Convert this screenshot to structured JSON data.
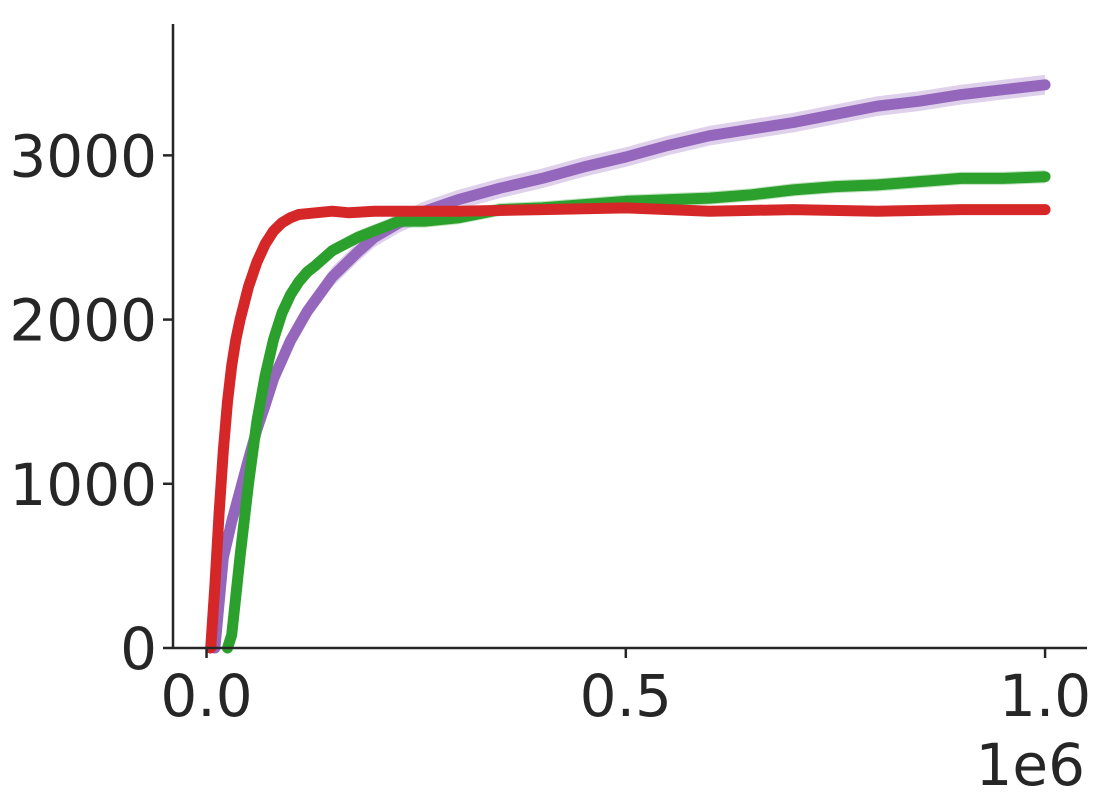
{
  "chart_data": {
    "type": "line",
    "title": "",
    "xlabel": "",
    "ylabel": "",
    "x_offset_label": "1e6",
    "xlim": [
      -0.04,
      1.05
    ],
    "ylim": [
      0,
      3800
    ],
    "xticks": [
      {
        "value": 0.0,
        "label": "0.0"
      },
      {
        "value": 0.5,
        "label": "0.5"
      },
      {
        "value": 1.0,
        "label": "1.0"
      }
    ],
    "yticks": [
      {
        "value": 0,
        "label": "0"
      },
      {
        "value": 1000,
        "label": "1000"
      },
      {
        "value": 2000,
        "label": "2000"
      },
      {
        "value": 3000,
        "label": "3000"
      }
    ],
    "grid": false,
    "series": [
      {
        "color": "#9467bd",
        "band": 60,
        "x": [
          0.01,
          0.02,
          0.03,
          0.04,
          0.05,
          0.06,
          0.07,
          0.08,
          0.1,
          0.12,
          0.15,
          0.18,
          0.2,
          0.23,
          0.26,
          0.3,
          0.35,
          0.4,
          0.45,
          0.5,
          0.55,
          0.6,
          0.65,
          0.7,
          0.75,
          0.8,
          0.85,
          0.9,
          0.95,
          1.0
        ],
        "y": [
          0,
          550,
          770,
          960,
          1150,
          1330,
          1480,
          1640,
          1870,
          2050,
          2260,
          2410,
          2500,
          2590,
          2660,
          2730,
          2800,
          2860,
          2930,
          2990,
          3060,
          3120,
          3160,
          3200,
          3250,
          3300,
          3330,
          3370,
          3400,
          3430
        ]
      },
      {
        "color": "#2ca02c",
        "band": 40,
        "x": [
          0.025,
          0.03,
          0.04,
          0.05,
          0.06,
          0.07,
          0.08,
          0.09,
          0.1,
          0.11,
          0.12,
          0.13,
          0.15,
          0.18,
          0.2,
          0.23,
          0.26,
          0.3,
          0.35,
          0.4,
          0.45,
          0.5,
          0.55,
          0.6,
          0.65,
          0.7,
          0.75,
          0.8,
          0.85,
          0.9,
          0.95,
          1.0
        ],
        "y": [
          0,
          80,
          560,
          1000,
          1380,
          1660,
          1880,
          2040,
          2150,
          2230,
          2290,
          2330,
          2420,
          2500,
          2540,
          2600,
          2600,
          2620,
          2670,
          2680,
          2700,
          2720,
          2730,
          2740,
          2760,
          2790,
          2810,
          2820,
          2840,
          2860,
          2860,
          2870
        ]
      },
      {
        "color": "#d62728",
        "band": 30,
        "x": [
          0.005,
          0.01,
          0.015,
          0.02,
          0.025,
          0.03,
          0.035,
          0.04,
          0.05,
          0.06,
          0.07,
          0.08,
          0.09,
          0.1,
          0.11,
          0.13,
          0.15,
          0.17,
          0.2,
          0.25,
          0.3,
          0.4,
          0.5,
          0.6,
          0.7,
          0.8,
          0.9,
          0.95,
          1.0
        ],
        "y": [
          0,
          380,
          820,
          1200,
          1500,
          1720,
          1880,
          2000,
          2200,
          2350,
          2460,
          2540,
          2590,
          2620,
          2640,
          2650,
          2660,
          2650,
          2660,
          2660,
          2660,
          2670,
          2680,
          2660,
          2670,
          2660,
          2670,
          2670,
          2670
        ]
      }
    ]
  }
}
